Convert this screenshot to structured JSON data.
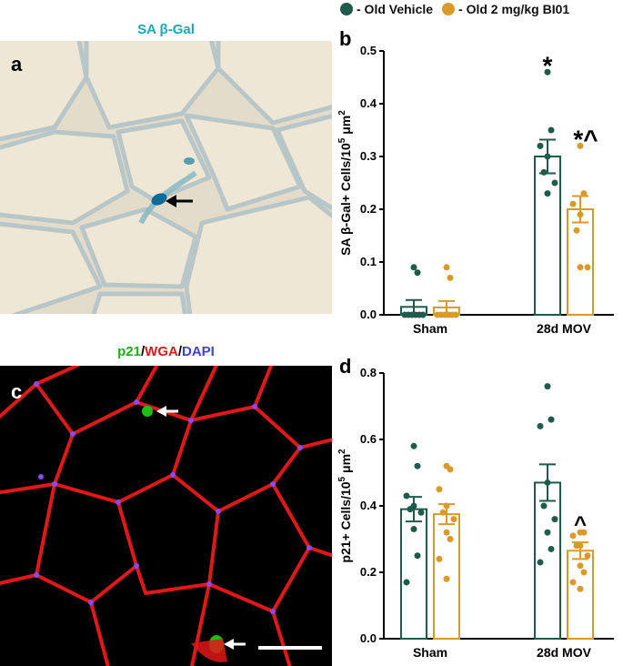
{
  "colors": {
    "vehicle": "#1f5a4a",
    "bi01": "#d89a2a",
    "sa_title": "#1aa8b0",
    "p21": "#18b018",
    "wga": "#e01818",
    "dapi": "#4040e0"
  },
  "panels": {
    "a": {
      "letter": "a",
      "title": "SA β-Gal"
    },
    "c": {
      "letter": "c",
      "title_parts": [
        "p21",
        "/",
        "WGA",
        "/",
        "DAPI"
      ]
    }
  },
  "legend": [
    {
      "label": "- Old Vehicle",
      "color": "#1f5a4a"
    },
    {
      "label": "- Old 2 mg/kg BI01",
      "color": "#d89a2a"
    }
  ],
  "chart_data": [
    {
      "panel": "b",
      "type": "bar",
      "categories": [
        "Sham",
        "28d MOV"
      ],
      "series": [
        {
          "name": "Old Vehicle",
          "means": [
            0.015,
            0.3
          ],
          "sem": [
            0.013,
            0.032
          ],
          "points": [
            [
              0.09,
              0.08,
              0.0,
              0.0,
              0.0,
              0.0,
              0.0,
              0.0
            ],
            [
              0.46,
              0.35,
              0.32,
              0.3,
              0.27,
              0.25,
              0.23
            ]
          ]
        },
        {
          "name": "Old 2 mg/kg BI01",
          "means": [
            0.014,
            0.2
          ],
          "sem": [
            0.012,
            0.025
          ],
          "points": [
            [
              0.09,
              0.07,
              0.0,
              0.0,
              0.0,
              0.0,
              0.0,
              0.0
            ],
            [
              0.32,
              0.23,
              0.21,
              0.19,
              0.16,
              0.09,
              0.09
            ]
          ]
        }
      ],
      "annotations": [
        "*",
        "*^"
      ],
      "ylabel_main": "SA β-Gal+ Cells/10",
      "ylabel_sup": "5",
      "ylabel_unit": " μm",
      "ylabel_sup2": "2",
      "ylim": [
        0,
        0.5
      ],
      "yticks": [
        "0.0",
        "0.1",
        "0.2",
        "0.3",
        "0.4",
        "0.5"
      ]
    },
    {
      "panel": "d",
      "type": "bar",
      "categories": [
        "Sham",
        "28d MOV"
      ],
      "series": [
        {
          "name": "Old Vehicle",
          "means": [
            0.39,
            0.47
          ],
          "sem": [
            0.037,
            0.055
          ],
          "points": [
            [
              0.58,
              0.52,
              0.43,
              0.4,
              0.39,
              0.38,
              0.33,
              0.25,
              0.17
            ],
            [
              0.76,
              0.66,
              0.64,
              0.47,
              0.4,
              0.36,
              0.32,
              0.27,
              0.23
            ]
          ]
        },
        {
          "name": "Old 2 mg/kg BI01",
          "means": [
            0.375,
            0.265
          ],
          "sem": [
            0.03,
            0.025
          ],
          "points": [
            [
              0.52,
              0.51,
              0.45,
              0.4,
              0.38,
              0.36,
              0.32,
              0.3,
              0.24,
              0.18
            ],
            [
              0.32,
              0.32,
              0.31,
              0.28,
              0.28,
              0.25,
              0.22,
              0.2,
              0.17,
              0.15
            ]
          ]
        }
      ],
      "annotations": [
        "",
        "^"
      ],
      "ylabel_main": "p21+ Cells/10",
      "ylabel_sup": "5",
      "ylabel_unit": " μm",
      "ylabel_sup2": "2",
      "ylim": [
        0,
        0.8
      ],
      "yticks": [
        "0.0",
        "0.2",
        "0.4",
        "0.6",
        "0.8"
      ]
    }
  ]
}
